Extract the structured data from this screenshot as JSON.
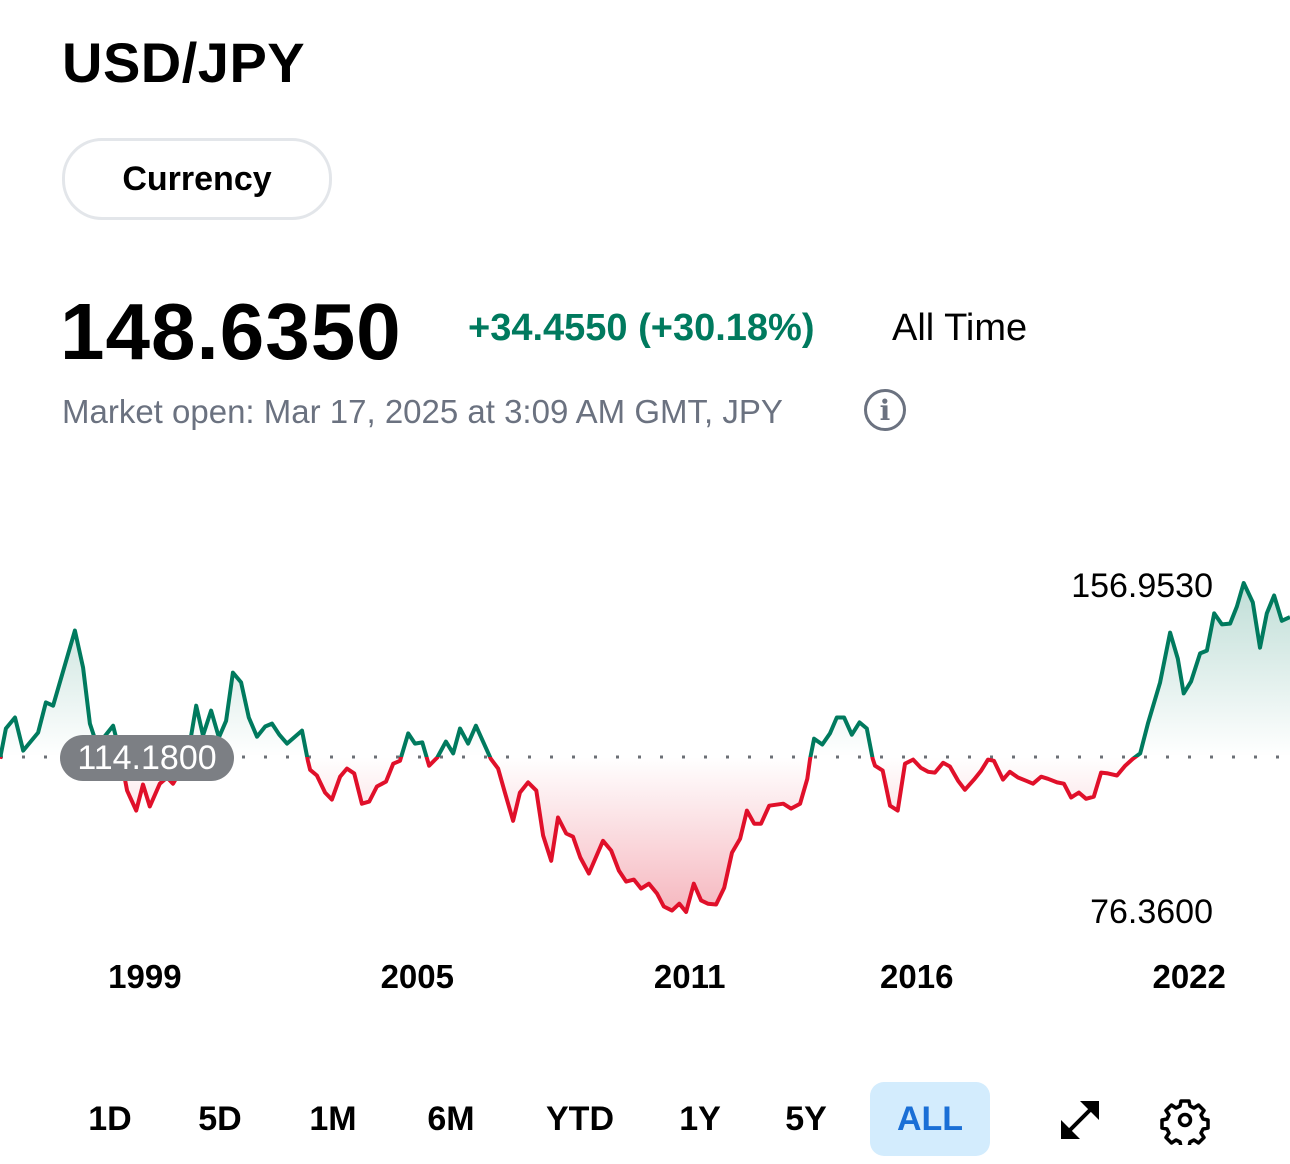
{
  "header": {
    "title": "USD/JPY",
    "category": "Currency"
  },
  "quote": {
    "price": "148.6350",
    "change": "+34.4550 (+30.18%)",
    "range_label": "All Time",
    "status": "Market open: Mar 17, 2025 at 3:09 AM GMT, JPY",
    "info_icon": "info-circle-icon"
  },
  "colors": {
    "up": "#007a5e",
    "down": "#e0102a",
    "active_bg": "#d3ecfd",
    "active_text": "#1a6fd6"
  },
  "chart_data": {
    "type": "line",
    "title": "USD/JPY All Time",
    "baseline": 114.18,
    "baseline_label": "114.1800",
    "max_label": "156.9530",
    "min_label": "76.3600",
    "ylim": [
      76.36,
      156.953
    ],
    "xlim": [
      1995.81,
      2024.22
    ],
    "x_ticks": [
      1999,
      2005,
      2011,
      2016,
      2022
    ],
    "x_tick_labels": [
      "1999",
      "2005",
      "2011",
      "2016",
      "2022"
    ],
    "points": [
      [
        1995.81,
        113.9
      ],
      [
        1995.94,
        121.3
      ],
      [
        1996.14,
        124.0
      ],
      [
        1996.32,
        115.9
      ],
      [
        1996.65,
        120.3
      ],
      [
        1996.82,
        127.7
      ],
      [
        1996.98,
        126.9
      ],
      [
        1997.46,
        145.3
      ],
      [
        1997.64,
        136.2
      ],
      [
        1997.79,
        122.5
      ],
      [
        1997.95,
        117.1
      ],
      [
        1998.3,
        122.0
      ],
      [
        1998.45,
        115.4
      ],
      [
        1998.61,
        106.1
      ],
      [
        1998.81,
        101.2
      ],
      [
        1998.96,
        107.6
      ],
      [
        1999.11,
        102.2
      ],
      [
        1999.33,
        107.8
      ],
      [
        1999.49,
        109.3
      ],
      [
        1999.62,
        107.8
      ],
      [
        1999.93,
        113.7
      ],
      [
        2000.13,
        126.9
      ],
      [
        2000.28,
        119.6
      ],
      [
        2000.46,
        125.7
      ],
      [
        2000.63,
        119.1
      ],
      [
        2000.79,
        123.2
      ],
      [
        2000.94,
        135.0
      ],
      [
        2001.12,
        132.6
      ],
      [
        2001.29,
        124.0
      ],
      [
        2001.47,
        119.3
      ],
      [
        2001.65,
        121.8
      ],
      [
        2001.8,
        122.5
      ],
      [
        2001.96,
        119.8
      ],
      [
        2002.13,
        117.6
      ],
      [
        2002.46,
        120.8
      ],
      [
        2002.59,
        113.4
      ],
      [
        2002.64,
        111.2
      ],
      [
        2002.79,
        109.8
      ],
      [
        2002.97,
        105.6
      ],
      [
        2003.12,
        103.9
      ],
      [
        2003.3,
        109.5
      ],
      [
        2003.45,
        111.5
      ],
      [
        2003.61,
        110.3
      ],
      [
        2003.78,
        102.9
      ],
      [
        2003.94,
        103.4
      ],
      [
        2004.11,
        107.1
      ],
      [
        2004.31,
        108.3
      ],
      [
        2004.47,
        112.7
      ],
      [
        2004.62,
        113.4
      ],
      [
        2004.8,
        120.1
      ],
      [
        2004.95,
        117.6
      ],
      [
        2005.11,
        117.9
      ],
      [
        2005.26,
        112.2
      ],
      [
        2005.44,
        114.2
      ],
      [
        2005.63,
        118.1
      ],
      [
        2005.79,
        115.2
      ],
      [
        2005.94,
        121.3
      ],
      [
        2006.12,
        117.6
      ],
      [
        2006.29,
        122.0
      ],
      [
        2006.62,
        113.9
      ],
      [
        2006.78,
        111.5
      ],
      [
        2006.93,
        105.6
      ],
      [
        2007.11,
        98.7
      ],
      [
        2007.26,
        105.6
      ],
      [
        2007.44,
        108.1
      ],
      [
        2007.62,
        106.1
      ],
      [
        2007.77,
        95.1
      ],
      [
        2007.95,
        88.9
      ],
      [
        2008.1,
        99.5
      ],
      [
        2008.28,
        95.6
      ],
      [
        2008.43,
        94.8
      ],
      [
        2008.59,
        89.7
      ],
      [
        2008.78,
        85.8
      ],
      [
        2009.09,
        93.8
      ],
      [
        2009.27,
        91.4
      ],
      [
        2009.44,
        86.5
      ],
      [
        2009.6,
        83.8
      ],
      [
        2009.77,
        84.3
      ],
      [
        2009.93,
        82.1
      ],
      [
        2010.1,
        83.3
      ],
      [
        2010.28,
        80.9
      ],
      [
        2010.43,
        77.7
      ],
      [
        2010.61,
        76.7
      ],
      [
        2010.77,
        78.4
      ],
      [
        2010.92,
        76.36
      ],
      [
        2011.09,
        83.3
      ],
      [
        2011.25,
        79.2
      ],
      [
        2011.4,
        78.4
      ],
      [
        2011.58,
        78.2
      ],
      [
        2011.76,
        82.3
      ],
      [
        2011.93,
        90.9
      ],
      [
        2012.11,
        94.3
      ],
      [
        2012.26,
        101.2
      ],
      [
        2012.42,
        98.0
      ],
      [
        2012.57,
        98.0
      ],
      [
        2012.75,
        102.4
      ],
      [
        2013.06,
        102.9
      ],
      [
        2013.23,
        101.7
      ],
      [
        2013.43,
        102.9
      ],
      [
        2013.59,
        109.0
      ],
      [
        2013.65,
        113.9
      ],
      [
        2013.74,
        118.8
      ],
      [
        2013.92,
        117.4
      ],
      [
        2014.09,
        120.1
      ],
      [
        2014.24,
        124.0
      ],
      [
        2014.4,
        124.0
      ],
      [
        2014.57,
        119.8
      ],
      [
        2014.74,
        122.8
      ],
      [
        2014.9,
        121.3
      ],
      [
        2015.03,
        113.9
      ],
      [
        2015.08,
        112.2
      ],
      [
        2015.25,
        111.0
      ],
      [
        2015.41,
        102.4
      ],
      [
        2015.58,
        101.2
      ],
      [
        2015.74,
        112.7
      ],
      [
        2015.92,
        113.7
      ],
      [
        2016.09,
        111.7
      ],
      [
        2016.25,
        110.7
      ],
      [
        2016.4,
        110.5
      ],
      [
        2016.58,
        112.9
      ],
      [
        2016.73,
        112.0
      ],
      [
        2016.91,
        108.5
      ],
      [
        2017.06,
        106.3
      ],
      [
        2017.26,
        108.8
      ],
      [
        2017.42,
        111.0
      ],
      [
        2017.57,
        113.7
      ],
      [
        2017.7,
        113.4
      ],
      [
        2017.9,
        108.8
      ],
      [
        2018.05,
        110.7
      ],
      [
        2018.23,
        109.3
      ],
      [
        2018.41,
        108.5
      ],
      [
        2018.56,
        107.8
      ],
      [
        2018.74,
        109.5
      ],
      [
        2018.89,
        109.0
      ],
      [
        2019.09,
        108.1
      ],
      [
        2019.24,
        107.8
      ],
      [
        2019.4,
        104.4
      ],
      [
        2019.57,
        105.6
      ],
      [
        2019.73,
        104.1
      ],
      [
        2019.9,
        104.6
      ],
      [
        2020.06,
        110.5
      ],
      [
        2020.21,
        110.3
      ],
      [
        2020.41,
        109.8
      ],
      [
        2020.59,
        112.2
      ],
      [
        2020.76,
        113.9
      ],
      [
        2020.92,
        115.2
      ],
      [
        2021.09,
        122.5
      ],
      [
        2021.36,
        132.6
      ],
      [
        2021.58,
        144.8
      ],
      [
        2021.75,
        138.4
      ],
      [
        2021.88,
        129.9
      ],
      [
        2022.04,
        132.8
      ],
      [
        2022.24,
        139.7
      ],
      [
        2022.39,
        140.4
      ],
      [
        2022.55,
        149.5
      ],
      [
        2022.72,
        146.8
      ],
      [
        2022.9,
        147.0
      ],
      [
        2023.05,
        151.2
      ],
      [
        2023.2,
        156.95
      ],
      [
        2023.4,
        152.2
      ],
      [
        2023.56,
        141.1
      ],
      [
        2023.71,
        149.5
      ],
      [
        2023.87,
        153.9
      ],
      [
        2024.04,
        147.7
      ],
      [
        2024.22,
        148.6
      ]
    ]
  },
  "ranges": [
    {
      "label": "1D"
    },
    {
      "label": "5D"
    },
    {
      "label": "1M"
    },
    {
      "label": "6M"
    },
    {
      "label": "YTD"
    },
    {
      "label": "1Y"
    },
    {
      "label": "5Y"
    },
    {
      "label": "ALL",
      "active": true
    }
  ],
  "tools": {
    "expand_icon": "expand-icon",
    "settings_icon": "gear-icon"
  }
}
